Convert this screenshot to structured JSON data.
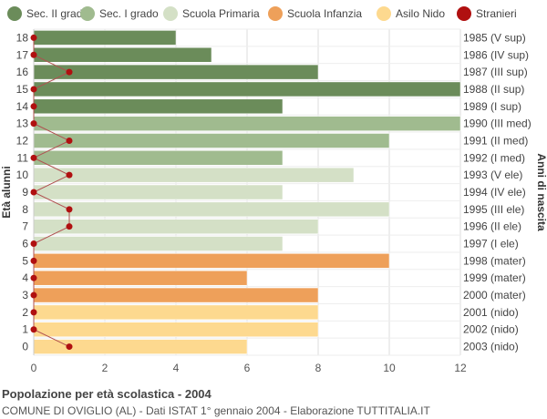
{
  "chart_data": {
    "type": "bar",
    "orientation": "horizontal",
    "title": "Popolazione per età scolastica - 2004",
    "subtitle": "COMUNE DI OVIGLIO (AL) - Dati ISTAT 1° gennaio 2004 - Elaborazione TUTTITALIA.IT",
    "ylabel": "Età alunni",
    "ylabel_right": "Anni di nascita",
    "xlim": [
      0,
      12
    ],
    "x_ticks": [
      0,
      2,
      4,
      6,
      8,
      10,
      12
    ],
    "grid": true,
    "legend_position": "top",
    "legend": [
      {
        "name": "Sec. II grado",
        "color": "#6b8c5a"
      },
      {
        "name": "Sec. I grado",
        "color": "#a0bb8f"
      },
      {
        "name": "Scuola Primaria",
        "color": "#d4e0c6"
      },
      {
        "name": "Scuola Infanzia",
        "color": "#eea05a"
      },
      {
        "name": "Asilo Nido",
        "color": "#fdd98f"
      },
      {
        "name": "Stranieri",
        "color": "#b01010"
      }
    ],
    "rows": [
      {
        "age": "18",
        "year": "1985 (V sup)",
        "value": 4,
        "group": 0,
        "stranieri": 0
      },
      {
        "age": "17",
        "year": "1986 (IV sup)",
        "value": 5,
        "group": 0,
        "stranieri": 0
      },
      {
        "age": "16",
        "year": "1987 (III sup)",
        "value": 8,
        "group": 0,
        "stranieri": 1
      },
      {
        "age": "15",
        "year": "1988 (II sup)",
        "value": 12,
        "group": 0,
        "stranieri": 0
      },
      {
        "age": "14",
        "year": "1989 (I sup)",
        "value": 7,
        "group": 0,
        "stranieri": 0
      },
      {
        "age": "13",
        "year": "1990 (III med)",
        "value": 12,
        "group": 1,
        "stranieri": 0
      },
      {
        "age": "12",
        "year": "1991 (II med)",
        "value": 10,
        "group": 1,
        "stranieri": 1
      },
      {
        "age": "11",
        "year": "1992 (I med)",
        "value": 7,
        "group": 1,
        "stranieri": 0
      },
      {
        "age": "10",
        "year": "1993 (V ele)",
        "value": 9,
        "group": 2,
        "stranieri": 1
      },
      {
        "age": "9",
        "year": "1994 (IV ele)",
        "value": 7,
        "group": 2,
        "stranieri": 0
      },
      {
        "age": "8",
        "year": "1995 (III ele)",
        "value": 10,
        "group": 2,
        "stranieri": 1
      },
      {
        "age": "7",
        "year": "1996 (II ele)",
        "value": 8,
        "group": 2,
        "stranieri": 1
      },
      {
        "age": "6",
        "year": "1997 (I ele)",
        "value": 7,
        "group": 2,
        "stranieri": 0
      },
      {
        "age": "5",
        "year": "1998 (mater)",
        "value": 10,
        "group": 3,
        "stranieri": 0
      },
      {
        "age": "4",
        "year": "1999 (mater)",
        "value": 6,
        "group": 3,
        "stranieri": 0
      },
      {
        "age": "3",
        "year": "2000 (mater)",
        "value": 8,
        "group": 3,
        "stranieri": 0
      },
      {
        "age": "2",
        "year": "2001 (nido)",
        "value": 8,
        "group": 4,
        "stranieri": 0
      },
      {
        "age": "1",
        "year": "2002 (nido)",
        "value": 8,
        "group": 4,
        "stranieri": 0
      },
      {
        "age": "0",
        "year": "2003 (nido)",
        "value": 6,
        "group": 4,
        "stranieri": 1
      }
    ]
  }
}
